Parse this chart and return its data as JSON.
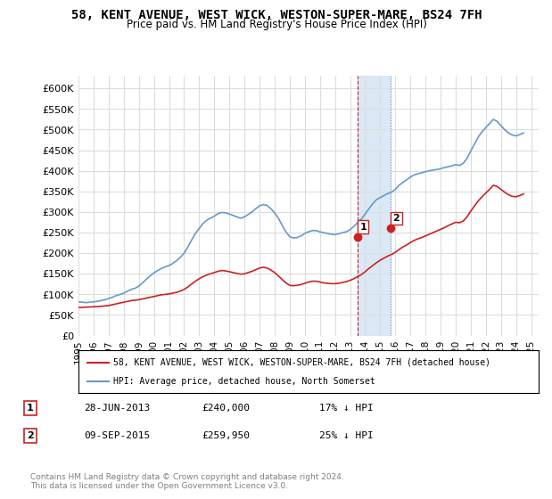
{
  "title": "58, KENT AVENUE, WEST WICK, WESTON-SUPER-MARE, BS24 7FH",
  "subtitle": "Price paid vs. HM Land Registry's House Price Index (HPI)",
  "ylabel_vals": [
    0,
    50000,
    100000,
    150000,
    200000,
    250000,
    300000,
    350000,
    400000,
    450000,
    500000,
    550000,
    600000
  ],
  "ylim": [
    0,
    630000
  ],
  "xlim_start": 1995,
  "xlim_end": 2025.5,
  "background_color": "#ffffff",
  "grid_color": "#dddddd",
  "hpi_color": "#6699cc",
  "price_color": "#cc2222",
  "sale1_date": 2013.49,
  "sale1_price": 240000,
  "sale2_date": 2015.69,
  "sale2_price": 259950,
  "legend_label1": "58, KENT AVENUE, WEST WICK, WESTON-SUPER-MARE, BS24 7FH (detached house)",
  "legend_label2": "HPI: Average price, detached house, North Somerset",
  "annotation1_label": "1",
  "annotation1_date": "28-JUN-2013",
  "annotation1_price": "£240,000",
  "annotation1_hpi": "17% ↓ HPI",
  "annotation2_label": "2",
  "annotation2_date": "09-SEP-2015",
  "annotation2_price": "£259,950",
  "annotation2_hpi": "25% ↓ HPI",
  "footer": "Contains HM Land Registry data © Crown copyright and database right 2024.\nThis data is licensed under the Open Government Licence v3.0.",
  "hpi_data_x": [
    1995.0,
    1995.25,
    1995.5,
    1995.75,
    1996.0,
    1996.25,
    1996.5,
    1996.75,
    1997.0,
    1997.25,
    1997.5,
    1997.75,
    1998.0,
    1998.25,
    1998.5,
    1998.75,
    1999.0,
    1999.25,
    1999.5,
    1999.75,
    2000.0,
    2000.25,
    2000.5,
    2000.75,
    2001.0,
    2001.25,
    2001.5,
    2001.75,
    2002.0,
    2002.25,
    2002.5,
    2002.75,
    2003.0,
    2003.25,
    2003.5,
    2003.75,
    2004.0,
    2004.25,
    2004.5,
    2004.75,
    2005.0,
    2005.25,
    2005.5,
    2005.75,
    2006.0,
    2006.25,
    2006.5,
    2006.75,
    2007.0,
    2007.25,
    2007.5,
    2007.75,
    2008.0,
    2008.25,
    2008.5,
    2008.75,
    2009.0,
    2009.25,
    2009.5,
    2009.75,
    2010.0,
    2010.25,
    2010.5,
    2010.75,
    2011.0,
    2011.25,
    2011.5,
    2011.75,
    2012.0,
    2012.25,
    2012.5,
    2012.75,
    2013.0,
    2013.25,
    2013.5,
    2013.75,
    2014.0,
    2014.25,
    2014.5,
    2014.75,
    2015.0,
    2015.25,
    2015.5,
    2015.75,
    2016.0,
    2016.25,
    2016.5,
    2016.75,
    2017.0,
    2017.25,
    2017.5,
    2017.75,
    2018.0,
    2018.25,
    2018.5,
    2018.75,
    2019.0,
    2019.25,
    2019.5,
    2019.75,
    2020.0,
    2020.25,
    2020.5,
    2020.75,
    2021.0,
    2021.25,
    2021.5,
    2021.75,
    2022.0,
    2022.25,
    2022.5,
    2022.75,
    2023.0,
    2023.25,
    2023.5,
    2023.75,
    2024.0,
    2024.25,
    2024.5
  ],
  "hpi_data_y": [
    82000,
    81000,
    80000,
    81000,
    82000,
    83000,
    85000,
    87000,
    90000,
    93000,
    97000,
    100000,
    103000,
    108000,
    112000,
    115000,
    120000,
    128000,
    137000,
    145000,
    152000,
    158000,
    163000,
    167000,
    170000,
    175000,
    182000,
    190000,
    200000,
    215000,
    232000,
    248000,
    260000,
    272000,
    280000,
    285000,
    290000,
    296000,
    299000,
    298000,
    295000,
    292000,
    288000,
    285000,
    288000,
    294000,
    300000,
    308000,
    315000,
    318000,
    316000,
    308000,
    298000,
    285000,
    268000,
    252000,
    240000,
    237000,
    238000,
    242000,
    248000,
    252000,
    255000,
    255000,
    252000,
    250000,
    248000,
    246000,
    245000,
    247000,
    250000,
    252000,
    257000,
    265000,
    274000,
    283000,
    295000,
    308000,
    320000,
    330000,
    335000,
    340000,
    345000,
    348000,
    355000,
    365000,
    372000,
    378000,
    385000,
    390000,
    393000,
    395000,
    398000,
    400000,
    402000,
    403000,
    405000,
    408000,
    410000,
    412000,
    415000,
    413000,
    418000,
    430000,
    448000,
    465000,
    482000,
    495000,
    505000,
    515000,
    525000,
    520000,
    510000,
    500000,
    492000,
    487000,
    485000,
    488000,
    492000
  ],
  "price_data_x": [
    1995.0,
    1995.25,
    1995.5,
    1995.75,
    1996.0,
    1996.25,
    1996.5,
    1996.75,
    1997.0,
    1997.25,
    1997.5,
    1997.75,
    1998.0,
    1998.25,
    1998.5,
    1998.75,
    1999.0,
    1999.25,
    1999.5,
    1999.75,
    2000.0,
    2000.25,
    2000.5,
    2000.75,
    2001.0,
    2001.25,
    2001.5,
    2001.75,
    2002.0,
    2002.25,
    2002.5,
    2002.75,
    2003.0,
    2003.25,
    2003.5,
    2003.75,
    2004.0,
    2004.25,
    2004.5,
    2004.75,
    2005.0,
    2005.25,
    2005.5,
    2005.75,
    2006.0,
    2006.25,
    2006.5,
    2006.75,
    2007.0,
    2007.25,
    2007.5,
    2007.75,
    2008.0,
    2008.25,
    2008.5,
    2008.75,
    2009.0,
    2009.25,
    2009.5,
    2009.75,
    2010.0,
    2010.25,
    2010.5,
    2010.75,
    2011.0,
    2011.25,
    2011.5,
    2011.75,
    2012.0,
    2012.25,
    2012.5,
    2012.75,
    2013.0,
    2013.25,
    2013.5,
    2013.75,
    2014.0,
    2014.25,
    2014.5,
    2014.75,
    2015.0,
    2015.25,
    2015.5,
    2015.75,
    2016.0,
    2016.25,
    2016.5,
    2016.75,
    2017.0,
    2017.25,
    2017.5,
    2017.75,
    2018.0,
    2018.25,
    2018.5,
    2018.75,
    2019.0,
    2019.25,
    2019.5,
    2019.75,
    2020.0,
    2020.25,
    2020.5,
    2020.75,
    2021.0,
    2021.25,
    2021.5,
    2021.75,
    2022.0,
    2022.25,
    2022.5,
    2022.75,
    2023.0,
    2023.25,
    2023.5,
    2023.75,
    2024.0,
    2024.25,
    2024.5
  ],
  "price_data_y": [
    68000,
    68500,
    69000,
    69500,
    70000,
    70500,
    71000,
    72000,
    73000,
    75000,
    77000,
    79000,
    81000,
    83000,
    85000,
    86000,
    87000,
    89000,
    91000,
    93000,
    95000,
    97000,
    99000,
    100000,
    101000,
    103000,
    105000,
    108000,
    112000,
    118000,
    125000,
    132000,
    138000,
    143000,
    147000,
    150000,
    153000,
    156000,
    158000,
    157000,
    155000,
    153000,
    151000,
    149000,
    150000,
    153000,
    156000,
    160000,
    164000,
    166000,
    164000,
    159000,
    153000,
    145000,
    136000,
    128000,
    122000,
    121000,
    122000,
    124000,
    127000,
    130000,
    132000,
    132000,
    130000,
    128000,
    127000,
    126000,
    126000,
    127000,
    129000,
    131000,
    134000,
    138000,
    143000,
    148000,
    155000,
    163000,
    170000,
    177000,
    183000,
    188000,
    193000,
    197000,
    202000,
    209000,
    215000,
    220000,
    226000,
    231000,
    235000,
    238000,
    242000,
    246000,
    250000,
    254000,
    258000,
    262000,
    267000,
    271000,
    275000,
    274000,
    278000,
    288000,
    302000,
    315000,
    327000,
    337000,
    346000,
    355000,
    365000,
    362000,
    355000,
    348000,
    342000,
    338000,
    337000,
    340000,
    344000
  ],
  "shaded_x1": 2013.49,
  "shaded_x2": 2015.69
}
